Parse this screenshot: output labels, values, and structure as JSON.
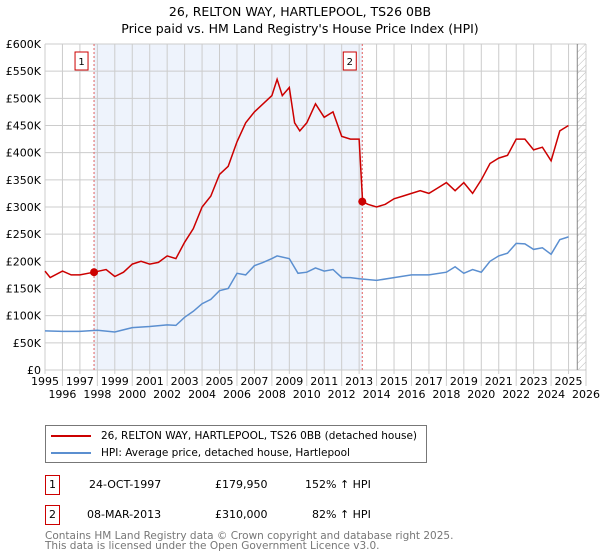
{
  "chart_data": {
    "type": "line",
    "title": "26, RELTON WAY, HARTLEPOOL, TS26 0BB",
    "subtitle": "Price paid vs. HM Land Registry's House Price Index (HPI)",
    "xlim": [
      1995,
      2026
    ],
    "ylim": [
      0,
      600000
    ],
    "x_ticks": [
      "1995",
      "1996",
      "1997",
      "1998",
      "1999",
      "2000",
      "2001",
      "2002",
      "2003",
      "2004",
      "2005",
      "2006",
      "2007",
      "2008",
      "2009",
      "2010",
      "2011",
      "2012",
      "2013",
      "2014",
      "2015",
      "2016",
      "2017",
      "2018",
      "2019",
      "2020",
      "2021",
      "2022",
      "2023",
      "2024",
      "2025",
      "2026"
    ],
    "y_ticks": [
      "£0",
      "£50K",
      "£100K",
      "£150K",
      "£200K",
      "£250K",
      "£300K",
      "£350K",
      "£400K",
      "£450K",
      "£500K",
      "£550K",
      "£600K"
    ],
    "grid": true,
    "series": [
      {
        "name": "26, RELTON WAY, HARTLEPOOL, TS26 0BB (detached house)",
        "color": "#cc0000",
        "x": [
          1995,
          1995.3,
          1996,
          1996.5,
          1997,
          1997.8,
          1998.5,
          1999,
          1999.5,
          2000,
          2000.5,
          2001,
          2001.5,
          2002,
          2002.5,
          2003,
          2003.5,
          2004,
          2004.5,
          2005,
          2005.5,
          2006,
          2006.5,
          2007,
          2007.5,
          2008,
          2008.3,
          2008.6,
          2009,
          2009.3,
          2009.6,
          2010,
          2010.5,
          2011,
          2011.5,
          2012,
          2012.5,
          2013,
          2013.2,
          2013.5,
          2014,
          2014.5,
          2015,
          2015.5,
          2016,
          2016.5,
          2017,
          2017.5,
          2018,
          2018.5,
          2019,
          2019.5,
          2020,
          2020.5,
          2021,
          2021.5,
          2022,
          2022.5,
          2023,
          2023.5,
          2024,
          2024.5,
          2025
        ],
        "y": [
          182000,
          170000,
          182000,
          175000,
          175000,
          180000,
          185000,
          172000,
          180000,
          195000,
          200000,
          195000,
          198000,
          210000,
          205000,
          235000,
          260000,
          300000,
          320000,
          360000,
          375000,
          420000,
          455000,
          475000,
          490000,
          505000,
          535000,
          505000,
          520000,
          455000,
          440000,
          455000,
          490000,
          465000,
          475000,
          430000,
          425000,
          425000,
          310000,
          305000,
          300000,
          305000,
          315000,
          320000,
          325000,
          330000,
          325000,
          335000,
          345000,
          330000,
          345000,
          325000,
          350000,
          380000,
          390000,
          395000,
          425000,
          425000,
          405000,
          410000,
          385000,
          440000,
          450000
        ]
      },
      {
        "name": "HPI: Average price, detached house, Hartlepool",
        "color": "#5b8fd0",
        "x": [
          1995,
          1996,
          1997,
          1998,
          1999,
          2000,
          2001,
          2002,
          2002.5,
          2003,
          2003.5,
          2004,
          2004.5,
          2005,
          2005.5,
          2006,
          2006.5,
          2007,
          2007.5,
          2008,
          2008.3,
          2009,
          2009.5,
          2010,
          2010.5,
          2011,
          2011.5,
          2012,
          2012.5,
          2013,
          2014,
          2015,
          2016,
          2017,
          2018,
          2018.5,
          2019,
          2019.5,
          2020,
          2020.5,
          2021,
          2021.5,
          2022,
          2022.5,
          2023,
          2023.5,
          2024,
          2024.5,
          2025
        ],
        "y": [
          72000,
          71000,
          71000,
          73000,
          70000,
          78000,
          80000,
          83000,
          82000,
          97000,
          108000,
          122000,
          130000,
          146000,
          150000,
          178000,
          175000,
          192000,
          198000,
          205000,
          210000,
          205000,
          178000,
          180000,
          188000,
          182000,
          185000,
          170000,
          170000,
          168000,
          165000,
          170000,
          175000,
          175000,
          180000,
          190000,
          178000,
          185000,
          180000,
          200000,
          210000,
          215000,
          233000,
          232000,
          222000,
          225000,
          213000,
          240000,
          245000
        ]
      }
    ],
    "annotations": [
      {
        "label": "1",
        "x": 1997.81,
        "y": 179950
      },
      {
        "label": "2",
        "x": 2013.18,
        "y": 310000
      }
    ],
    "shaded_range": [
      1997.81,
      2013.18
    ],
    "hatched_from": 2025.5
  },
  "transactions": [
    {
      "num": "1",
      "date": "24-OCT-1997",
      "price": "£179,950",
      "hpi": "152% ↑ HPI"
    },
    {
      "num": "2",
      "date": "08-MAR-2013",
      "price": "£310,000",
      "hpi": "82% ↑ HPI"
    }
  ],
  "footer": {
    "line1": "Contains HM Land Registry data © Crown copyright and database right 2025.",
    "line2": "This data is licensed under the Open Government Licence v3.0."
  }
}
